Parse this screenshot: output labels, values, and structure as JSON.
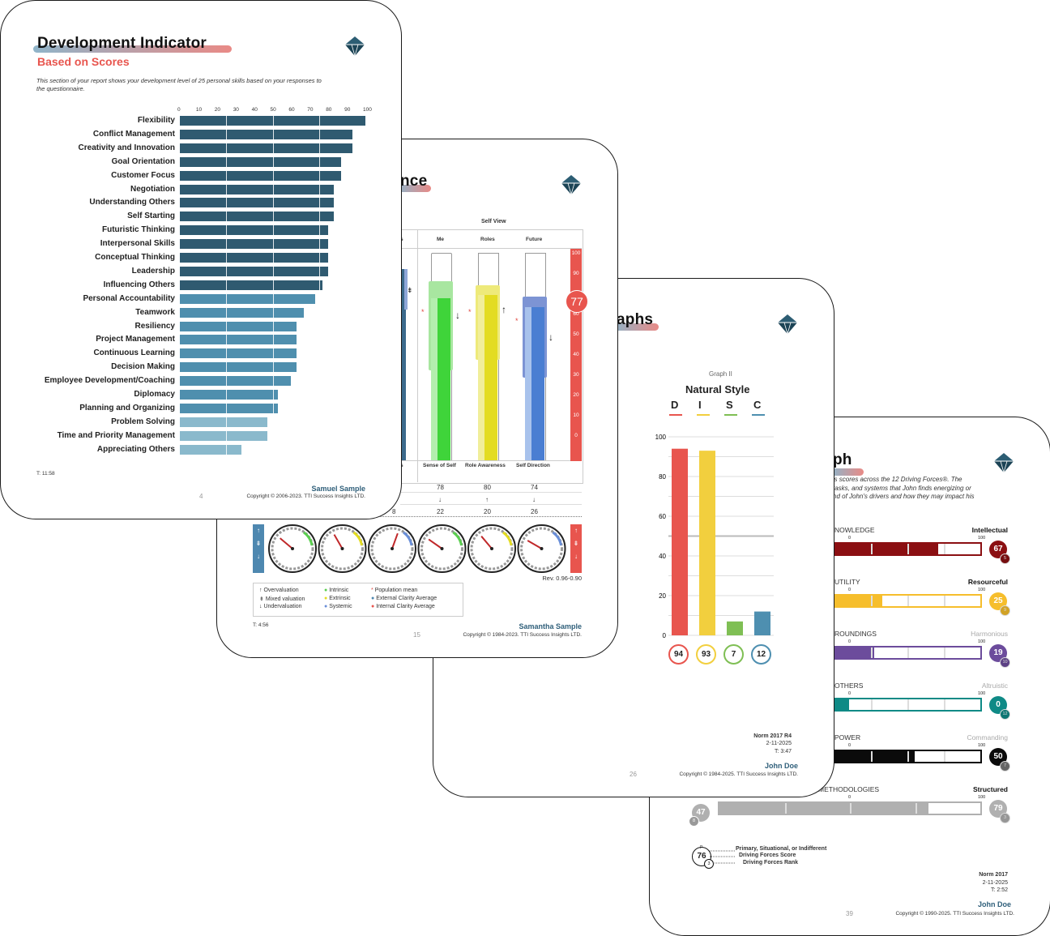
{
  "page39": {
    "title": "Driving Forces Graph",
    "visible_title": "ph",
    "intro_1": "'s scores across the 12 Driving Forces®.  The",
    "intro_2": "tasks, and systems that John finds energizing or",
    "intro_3": "nd of John's drivers and how they may impact his",
    "rows": [
      {
        "left": "NOWLEDGE",
        "right": "Intellectual",
        "right_gray": false,
        "color": "#8b0f12",
        "score": 67,
        "rank": "5",
        "bar_fill": 0.71,
        "p_label": ""
      },
      {
        "left": "UTILITY",
        "right": "Resourceful",
        "right_gray": false,
        "color": "#f6be2c",
        "score": 25,
        "rank": "9",
        "bar_fill": 0.33,
        "p_label": ""
      },
      {
        "left": "ROUNDINGS",
        "right": "Harmonious",
        "right_gray": true,
        "color": "#6c4c9c",
        "score": 19,
        "rank": "10",
        "bar_fill": 0.27,
        "p_label": ""
      },
      {
        "left": "OTHERS",
        "right": "Altruistic",
        "right_gray": true,
        "color": "#0f8a86",
        "score": 0,
        "rank": "12",
        "bar_fill": 0.1,
        "p_label": ""
      },
      {
        "left": "POWER",
        "right": "Commanding",
        "right_gray": true,
        "color": "#0b0b0b",
        "score": 50,
        "rank": "7",
        "bar_fill": 0.55,
        "p_label": ""
      },
      {
        "left": "METHODOLOGIES",
        "right": "Structured",
        "right_gray": false,
        "color": "#b0b0b0",
        "score": 79,
        "rank": "3",
        "bar_fill": 0.8,
        "p_label": ""
      }
    ],
    "scale_zero": "0",
    "scale_hundred": "100",
    "left_circle": {
      "score": 47,
      "rank": "8"
    },
    "legend_score": "76",
    "legend_rank": "3",
    "legend_p": "P",
    "legend_1": "Primary, Situational, or Indifferent",
    "legend_2": "Driving Forces Score",
    "legend_3": "Driving Forces Rank",
    "norm": "Norm 2017",
    "date": "2-11-2025",
    "time": "T: 2:52",
    "name": "John Doe",
    "page": "39",
    "copyright": "Copyright © 1990-2025. TTI Success Insights LTD."
  },
  "page26": {
    "visible_title": "aphs",
    "graph_label": "Graph II",
    "graph_title": "Natural Style",
    "letters": [
      "D",
      "I",
      "S",
      "C"
    ],
    "colors": [
      "#e8554e",
      "#f2cf3e",
      "#7fbf54",
      "#4e8fb0"
    ],
    "axis": [
      "100",
      "80",
      "60",
      "40",
      "20",
      "0"
    ],
    "chart_data": {
      "type": "bar",
      "categories": [
        "D",
        "I",
        "S",
        "C"
      ],
      "values": [
        94,
        93,
        7,
        12
      ],
      "title": "Natural Style",
      "ylim": [
        0,
        100
      ]
    },
    "norm": "Norm 2017 R4",
    "date": "2-11-2025",
    "time": "T: 3:47",
    "name": "John Doe",
    "page": "26",
    "copyright": "Copyright © 1984-2025. TTI Success Insights LTD."
  },
  "page15": {
    "visible_title": "nce",
    "self_view": "Self View",
    "col_headers": [
      "s",
      "Me",
      "Roles",
      "Future"
    ],
    "bottom_labels": [
      "s\nnt",
      "Sense of Self",
      "Role Awareness",
      "Self Direction"
    ],
    "scale": [
      "100",
      "90",
      "70",
      "60",
      "50",
      "40",
      "30",
      "20",
      "10",
      "0"
    ],
    "big_value": "77",
    "row1": [
      "78",
      "80",
      "74"
    ],
    "row2": [
      "↓",
      "↑",
      "↓"
    ],
    "row3": [
      "8",
      "22",
      "20",
      "26"
    ],
    "rev": "Rev. 0.96-0.90",
    "legend_a": [
      "Overvaluation",
      "Mixed valuation",
      "Undervaluation"
    ],
    "legend_b": [
      "Intrinsic",
      "Extrinsic",
      "Systemic"
    ],
    "legend_c": [
      "Population mean",
      "External Clarity Average",
      "Internal Clarity Average"
    ],
    "time": "T: 4:56",
    "name": "Samantha Sample",
    "page": "15",
    "copyright": "Copyright © 1984-2023. TTI Success Insights LTD."
  },
  "page4": {
    "title": "Development Indicator",
    "subtitle": "Based on Scores",
    "intro_1": "This section of your report shows your development level of 25 personal skills based on your responses to",
    "intro_2": "the questionnaire.",
    "ticks": [
      "0",
      "10",
      "20",
      "30",
      "40",
      "50",
      "60",
      "70",
      "80",
      "90",
      "100"
    ],
    "chart_data": {
      "type": "bar",
      "orientation": "horizontal",
      "categories": [
        "Flexibility",
        "Conflict Management",
        "Creativity and Innovation",
        "Goal Orientation",
        "Customer Focus",
        "Negotiation",
        "Understanding Others",
        "Self Starting",
        "Futuristic Thinking",
        "Interpersonal Skills",
        "Conceptual Thinking",
        "Leadership",
        "Influencing Others",
        "Personal Accountability",
        "Teamwork",
        "Resiliency",
        "Project Management",
        "Continuous Learning",
        "Decision Making",
        "Employee Development/Coaching",
        "Diplomacy",
        "Planning and Organizing",
        "Problem Solving",
        "Time and Priority Management",
        "Appreciating Others"
      ],
      "values": [
        100,
        93,
        93,
        87,
        87,
        83,
        83,
        83,
        80,
        80,
        80,
        80,
        77,
        73,
        67,
        63,
        63,
        63,
        63,
        60,
        53,
        53,
        47,
        47,
        33
      ],
      "colors": [
        "#2f5a70",
        "#2f5a70",
        "#2f5a70",
        "#2f5a70",
        "#2f5a70",
        "#2f5a70",
        "#2f5a70",
        "#2f5a70",
        "#2f5a70",
        "#2f5a70",
        "#2f5a70",
        "#2f5a70",
        "#2f5a70",
        "#4f8fae",
        "#4f8fae",
        "#4f8fae",
        "#4f8fae",
        "#4f8fae",
        "#4f8fae",
        "#4f8fae",
        "#4f8fae",
        "#4f8fae",
        "#8ab9cc",
        "#8ab9cc",
        "#8ab9cc"
      ],
      "xlim": [
        0,
        100
      ]
    },
    "time": "T: 11:58",
    "name": "Samuel Sample",
    "page": "4",
    "copyright": "Copyright © 2006-2023. TTI Success Insights LTD."
  }
}
